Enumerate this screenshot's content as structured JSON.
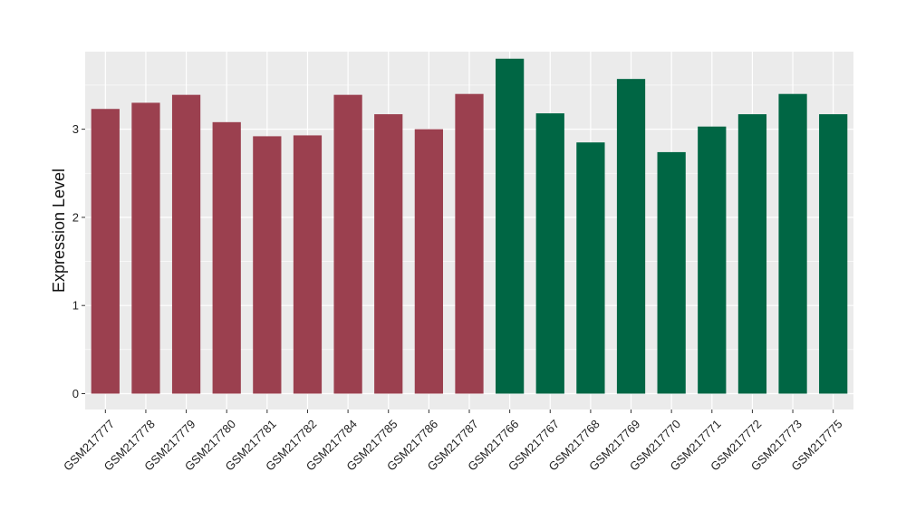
{
  "chart_data": {
    "type": "bar",
    "title": "",
    "xlabel": "",
    "ylabel": "Expression Level",
    "ylim": [
      -0.18,
      3.88
    ],
    "yticks": [
      0,
      1,
      2,
      3
    ],
    "grid": true,
    "legend": "none",
    "categories": [
      "GSM217777",
      "GSM217778",
      "GSM217779",
      "GSM217780",
      "GSM217781",
      "GSM217782",
      "GSM217784",
      "GSM217785",
      "GSM217786",
      "GSM217787",
      "GSM217766",
      "GSM217767",
      "GSM217768",
      "GSM217769",
      "GSM217770",
      "GSM217771",
      "GSM217772",
      "GSM217773",
      "GSM217775"
    ],
    "values": [
      3.23,
      3.3,
      3.39,
      3.08,
      2.92,
      2.93,
      3.39,
      3.17,
      3.0,
      3.4,
      3.8,
      3.18,
      2.85,
      3.57,
      2.74,
      3.03,
      3.17,
      3.4,
      3.17
    ],
    "groups": [
      "g1",
      "g1",
      "g1",
      "g1",
      "g1",
      "g1",
      "g1",
      "g1",
      "g1",
      "g1",
      "g2",
      "g2",
      "g2",
      "g2",
      "g2",
      "g2",
      "g2",
      "g2",
      "g2"
    ],
    "colors": {
      "g1": "#9b404f",
      "g2": "#006644",
      "panel": "#ebebeb",
      "grid": "#ffffff"
    }
  }
}
